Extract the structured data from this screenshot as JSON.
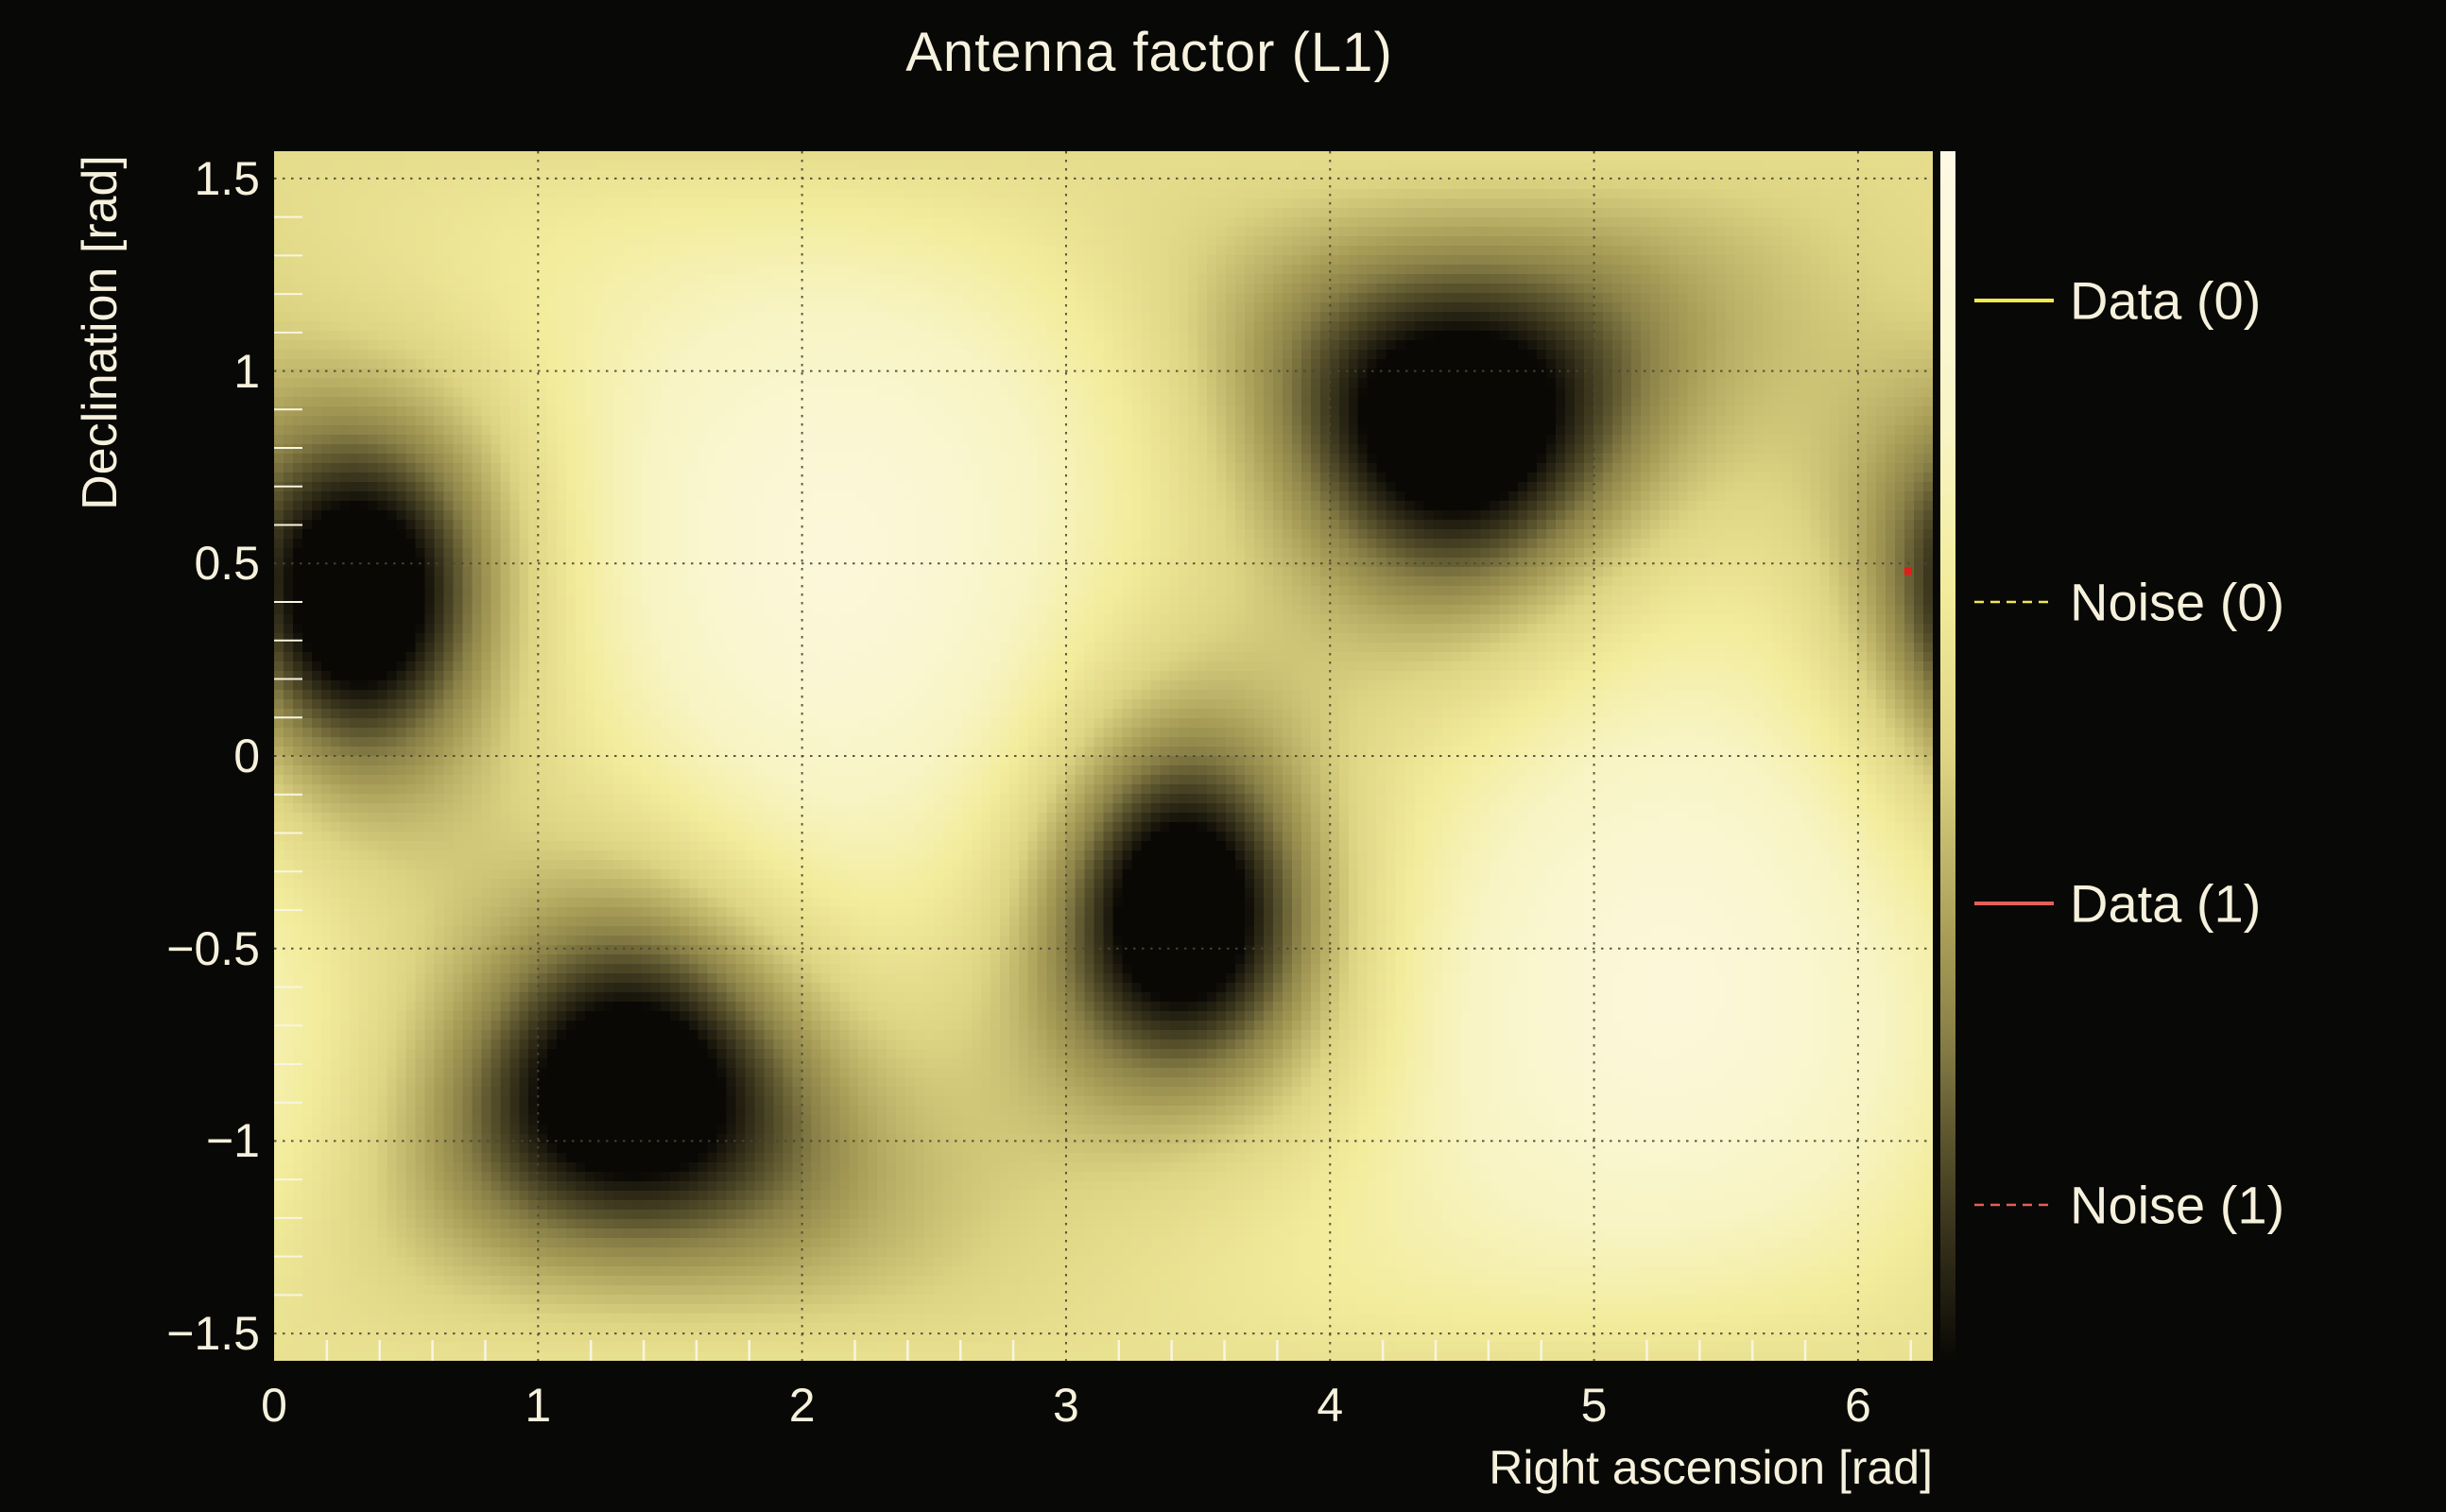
{
  "title": "Antenna factor (L1)",
  "axes": {
    "x": {
      "label": "Right ascension [rad]",
      "ticks": [
        {
          "value": 0,
          "label": "0"
        },
        {
          "value": 1,
          "label": "1"
        },
        {
          "value": 2,
          "label": "2"
        },
        {
          "value": 3,
          "label": "3"
        },
        {
          "value": 4,
          "label": "4"
        },
        {
          "value": 5,
          "label": "5"
        },
        {
          "value": 6,
          "label": "6"
        }
      ],
      "minor_step": 0.2,
      "range": [
        0,
        6.2832
      ]
    },
    "y": {
      "label": "Declination [rad]",
      "ticks": [
        {
          "value": 1.5,
          "label": "1.5"
        },
        {
          "value": 1.0,
          "label": "1"
        },
        {
          "value": 0.5,
          "label": "0.5"
        },
        {
          "value": 0.0,
          "label": "0"
        },
        {
          "value": -0.5,
          "label": "−0.5"
        },
        {
          "value": -1.0,
          "label": "−1"
        },
        {
          "value": -1.5,
          "label": "−1.5"
        }
      ],
      "minor_step": 0.1,
      "range": [
        -1.5708,
        1.5708
      ]
    }
  },
  "legend": {
    "entries": [
      {
        "label": "Data (0)",
        "color": "#efe94f",
        "style": "solid"
      },
      {
        "label": "Noise (0)",
        "color": "#efe94f",
        "style": "dashed"
      },
      {
        "label": "Data (1)",
        "color": "#e2605a",
        "style": "solid"
      },
      {
        "label": "Noise (1)",
        "color": "#e2605a",
        "style": "dashed"
      }
    ]
  },
  "colors": {
    "background": "#080806",
    "text": "#f6f1dc",
    "grid": "#4a4736",
    "tick": "#f8f5e0",
    "marker_red": "#e41b1b"
  },
  "chart_data": {
    "type": "heatmap",
    "title": "Antenna factor (L1)",
    "xlabel": "Right ascension [rad]",
    "ylabel": "Declination [rad]",
    "x_range": [
      0,
      6.2832
    ],
    "y_range": [
      -1.5708,
      1.5708
    ],
    "grid": "dotted",
    "legend_position": "right-outside",
    "field_model": {
      "base_level": 0.6,
      "nulls": [
        {
          "ra": 0.32,
          "dec": 0.42
        },
        {
          "ra": 1.35,
          "dec": -0.87
        },
        {
          "ra": 3.44,
          "dec": -0.41
        },
        {
          "ra": 4.48,
          "dec": 0.87
        }
      ],
      "null_amp": 0.92,
      "null_sigma": 0.45,
      "null_power": 1.5,
      "maxima": [
        {
          "ra": 2.12,
          "dec": 0.52
        },
        {
          "ra": 5.28,
          "dec": -0.62
        }
      ],
      "max_amp": 0.32,
      "max_sigma": 0.95,
      "max_power": 2
    },
    "colormap_stops": [
      [
        0.0,
        "#0a0805"
      ],
      [
        0.11,
        "#39341c"
      ],
      [
        0.19,
        "#5f5830"
      ],
      [
        0.27,
        "#8a8148"
      ],
      [
        0.35,
        "#a89d57"
      ],
      [
        0.5,
        "#ded584"
      ],
      [
        0.64,
        "#f2ec9c"
      ],
      [
        0.77,
        "#f8f4c4"
      ],
      [
        1.0,
        "#fdf9e4"
      ]
    ],
    "event_points": [
      {
        "ra": 6.19,
        "dec": 0.48,
        "color": "#e41b1b",
        "shape": "square"
      }
    ],
    "bins": {
      "nx": 176,
      "ny": 128
    }
  }
}
